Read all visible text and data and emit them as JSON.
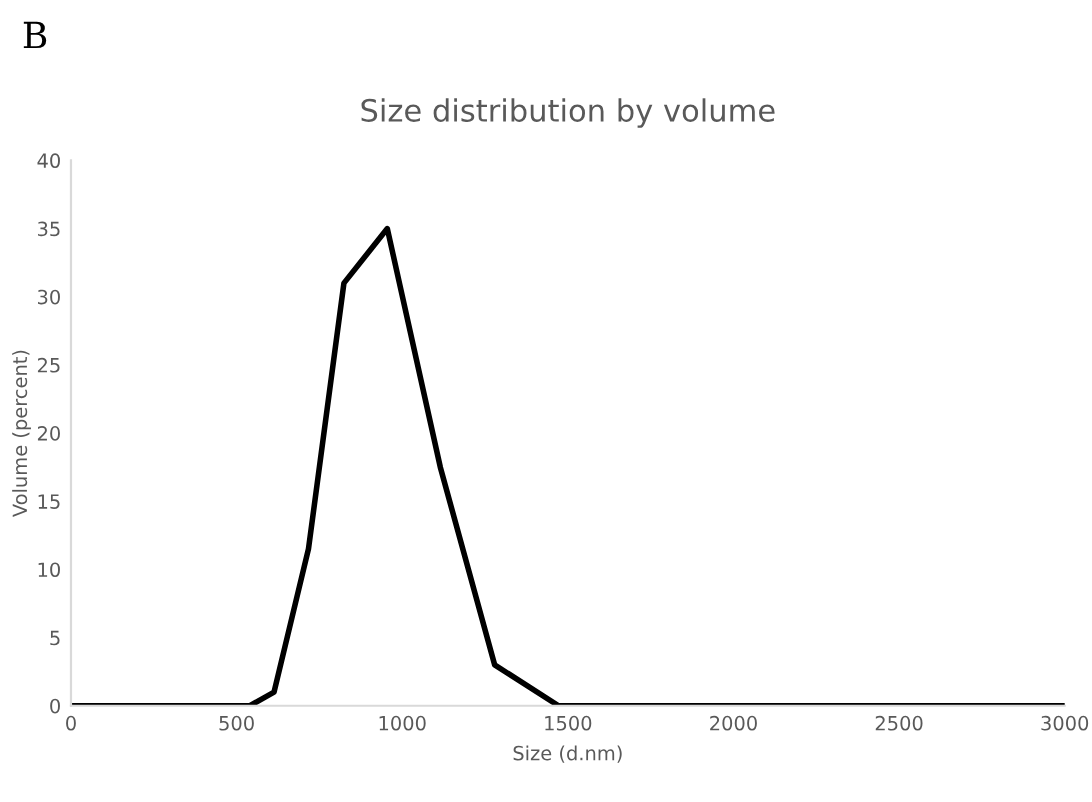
{
  "chart_data": {
    "type": "line",
    "title": "Size distribution by volume",
    "xlabel": "Size (d.nm)",
    "ylabel": "Volume (percent)",
    "annotations": [
      "B"
    ],
    "x": [
      0,
      540,
      613,
      717,
      824,
      955,
      1115,
      1279,
      1472,
      3000
    ],
    "series": [
      {
        "color": "#000000",
        "values": [
          0,
          0,
          1,
          11.5,
          31,
          35,
          17.5,
          3,
          0,
          0
        ]
      }
    ],
    "xlim": [
      0,
      3000
    ],
    "xticks": [
      0,
      500,
      1000,
      1500,
      2000,
      2500,
      3000
    ],
    "ylim": [
      0,
      40
    ],
    "yticks": [
      0,
      5,
      10,
      15,
      20,
      25,
      30,
      35,
      40
    ],
    "grid": false,
    "legend": false,
    "marker": "none",
    "line_style": "solid"
  }
}
